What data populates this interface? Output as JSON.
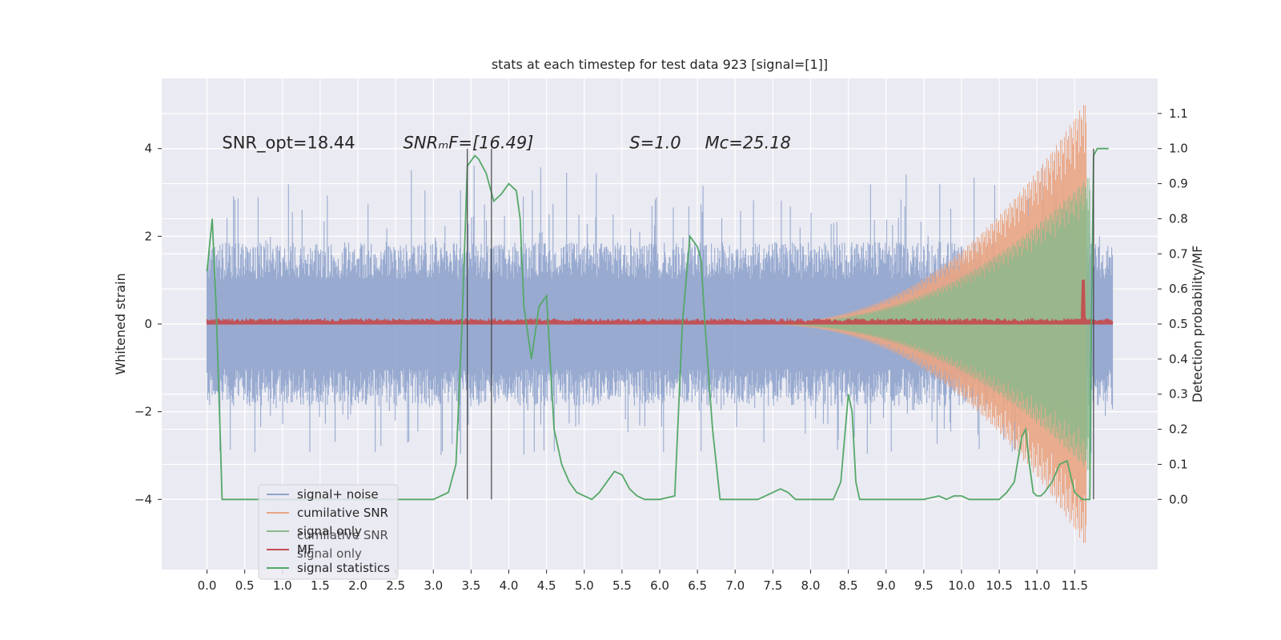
{
  "chart_data": {
    "type": "line",
    "title": "stats at each timestep for test data 923 [signal=[1]]",
    "xlabel": "",
    "ylabel": "Whitened strain",
    "ylabel_right": "Detection probability/MF",
    "xlim": [
      -0.6,
      12.6
    ],
    "ylim": [
      -5.6,
      5.6
    ],
    "ylim_right": [
      -0.2,
      1.2
    ],
    "x_ticks": [
      "0.0",
      "0.5",
      "1.0",
      "1.5",
      "2.0",
      "2.5",
      "3.0",
      "3.5",
      "4.0",
      "4.5",
      "5.0",
      "5.5",
      "6.0",
      "6.5",
      "7.0",
      "7.5",
      "8.0",
      "8.5",
      "9.0",
      "9.5",
      "10.0",
      "10.5",
      "11.0",
      "11.5"
    ],
    "x_tick_values": [
      0,
      0.5,
      1,
      1.5,
      2,
      2.5,
      3,
      3.5,
      4,
      4.5,
      5,
      5.5,
      6,
      6.5,
      7,
      7.5,
      8,
      8.5,
      9,
      9.5,
      10,
      10.5,
      11,
      11.5
    ],
    "y_ticks": [
      "4",
      "2",
      "0",
      "−2",
      "−4"
    ],
    "y_tick_values": [
      4,
      2,
      0,
      -2,
      -4
    ],
    "y_right_ticks": [
      "1.1",
      "1.0",
      "0.9",
      "0.8",
      "0.7",
      "0.6",
      "0.5",
      "0.4",
      "0.3",
      "0.2",
      "0.1",
      "0.0"
    ],
    "y_right_tick_values": [
      1.1,
      1.0,
      0.9,
      0.8,
      0.7,
      0.6,
      0.5,
      0.4,
      0.3,
      0.2,
      0.1,
      0.0
    ],
    "annotations": [
      {
        "id": "snr-opt",
        "text": "SNR_opt=18.44",
        "x": 0.2,
        "y": 4.0
      },
      {
        "id": "snr-mf",
        "text": "SNRₘF=[16.49]",
        "x": 2.6,
        "y": 4.0
      },
      {
        "id": "s",
        "text": "S=1.0",
        "x": 5.6,
        "y": 4.0
      },
      {
        "id": "mc",
        "text": "Mᴄ=25.18",
        "x": 6.6,
        "y": 4.0
      }
    ],
    "vlines": [
      3.45,
      3.77,
      11.75
    ],
    "vline_range": [
      -4,
      4
    ],
    "series": [
      {
        "name": "signal+ noise",
        "color": "#8fa3cc",
        "kind": "noise",
        "x_range": [
          0,
          12
        ],
        "amplitude": 1.7
      },
      {
        "name": "cumilative SNR",
        "color": "#e9a583",
        "kind": "chirp-envelope",
        "x_range": [
          7.2,
          11.65
        ],
        "peak": 5.1
      },
      {
        "name": "signal only",
        "color": "#8cb98c",
        "kind": "chirp-envelope",
        "x_range": [
          7.2,
          11.7
        ],
        "peak": 3.4
      },
      {
        "name": "MF",
        "color": "#c44e52",
        "kind": "noise-low",
        "x_range": [
          0,
          12
        ],
        "level": 0.1,
        "spike": [
          11.62,
          1.0
        ]
      },
      {
        "name": "signal statistics",
        "color": "#55a868",
        "kind": "line",
        "axis": "right",
        "x": [
          0,
          0.07,
          0.12,
          0.18,
          0.2,
          0.3,
          0.4,
          0.5,
          0.6,
          1.0,
          1.5,
          2.0,
          2.5,
          3.0,
          3.2,
          3.3,
          3.38,
          3.45,
          3.55,
          3.6,
          3.7,
          3.8,
          3.9,
          4.0,
          4.1,
          4.15,
          4.2,
          4.3,
          4.4,
          4.5,
          4.6,
          4.7,
          4.8,
          4.9,
          5.0,
          5.1,
          5.2,
          5.3,
          5.4,
          5.5,
          5.6,
          5.7,
          5.8,
          5.9,
          6.0,
          6.2,
          6.3,
          6.4,
          6.5,
          6.55,
          6.6,
          6.7,
          6.8,
          6.9,
          7.0,
          7.3,
          7.6,
          7.7,
          7.8,
          8.0,
          8.3,
          8.4,
          8.5,
          8.55,
          8.6,
          8.65,
          8.7,
          8.8,
          9.0,
          9.5,
          9.7,
          9.8,
          9.9,
          10.0,
          10.1,
          10.2,
          10.3,
          10.5,
          10.6,
          10.7,
          10.8,
          10.85,
          10.9,
          10.95,
          11.0,
          11.05,
          11.1,
          11.2,
          11.3,
          11.4,
          11.5,
          11.6,
          11.7,
          11.72,
          11.75,
          11.8,
          11.85,
          11.9,
          11.95
        ],
        "y": [
          0.65,
          0.8,
          0.55,
          0.15,
          0,
          0,
          0,
          0,
          0,
          0,
          0,
          0,
          0,
          0,
          0.02,
          0.1,
          0.5,
          0.95,
          0.98,
          0.97,
          0.93,
          0.85,
          0.87,
          0.9,
          0.88,
          0.8,
          0.55,
          0.4,
          0.55,
          0.58,
          0.2,
          0.1,
          0.05,
          0.02,
          0.01,
          0.0,
          0.02,
          0.05,
          0.08,
          0.07,
          0.03,
          0.01,
          0,
          0,
          0,
          0.01,
          0.5,
          0.75,
          0.72,
          0.68,
          0.5,
          0.2,
          0.0,
          0,
          0,
          0,
          0.03,
          0.02,
          0,
          0,
          0,
          0.05,
          0.3,
          0.25,
          0.05,
          0,
          0,
          0,
          0,
          0,
          0.01,
          0,
          0.01,
          0.01,
          0,
          0,
          0,
          0,
          0.02,
          0.05,
          0.18,
          0.2,
          0.1,
          0.02,
          0.01,
          0.01,
          0.02,
          0.05,
          0.1,
          0.11,
          0.02,
          0.0,
          0.0,
          0.5,
          0.98,
          1.0,
          1.0,
          1.0,
          1.0
        ]
      }
    ],
    "legend": {
      "placement": "lower-left",
      "entries": [
        {
          "label": "signal+ noise",
          "color": "#8fa3cc"
        },
        {
          "label": "cumilative SNR",
          "color": "#e9a583"
        },
        {
          "label": "signal only",
          "color": "#8cb98c"
        },
        {
          "label": "MF",
          "color": "#c44e52"
        },
        {
          "label": "signal statistics",
          "color": "#55a868"
        }
      ]
    },
    "ghost_legend": [
      "cumilative SNR",
      "signal only"
    ],
    "background": "#eaeaf2",
    "grid": true
  }
}
